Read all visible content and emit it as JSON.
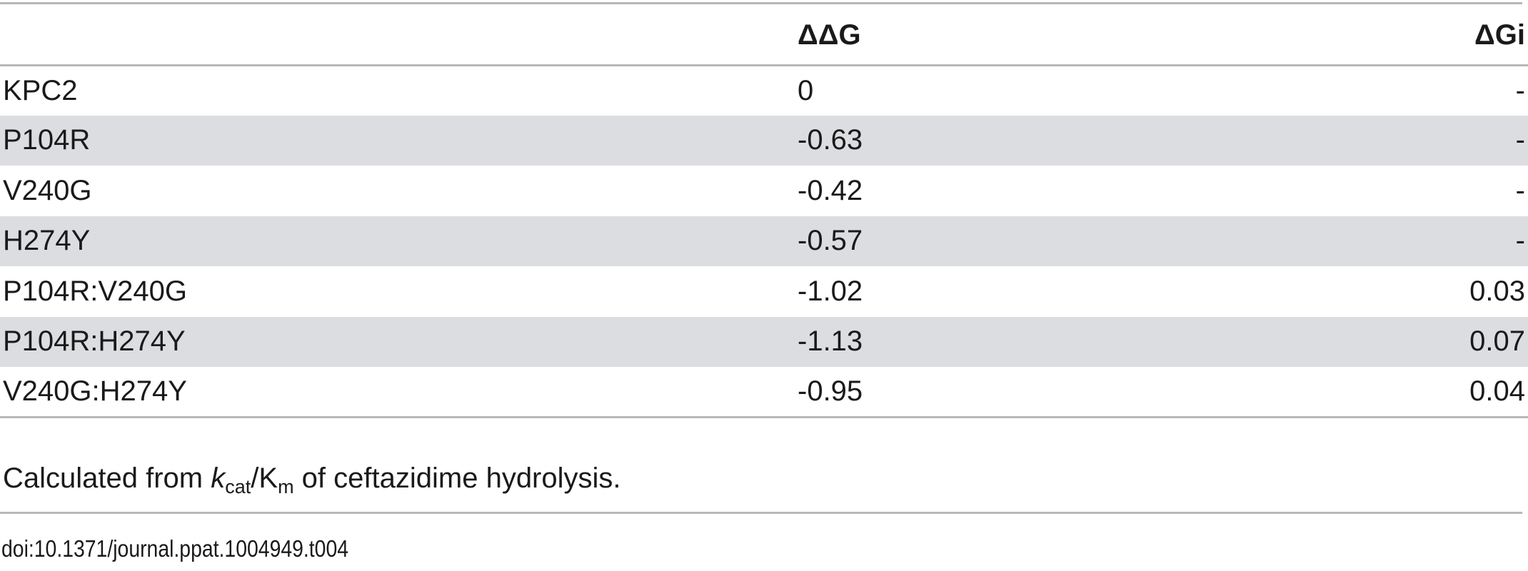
{
  "table": {
    "headers": [
      "",
      "ΔΔG",
      "ΔGi"
    ],
    "rows": [
      {
        "name": "KPC2",
        "ddg": "0",
        "dgi": "-",
        "shaded": false
      },
      {
        "name": "P104R",
        "ddg": "-0.63",
        "dgi": "-",
        "shaded": true
      },
      {
        "name": "V240G",
        "ddg": "-0.42",
        "dgi": "-",
        "shaded": false
      },
      {
        "name": "H274Y",
        "ddg": "-0.57",
        "dgi": "-",
        "shaded": true
      },
      {
        "name": "P104R:V240G",
        "ddg": "-1.02",
        "dgi": "0.03",
        "shaded": false
      },
      {
        "name": "P104R:H274Y",
        "ddg": "-1.13",
        "dgi": "0.07",
        "shaded": true
      },
      {
        "name": "V240G:H274Y",
        "ddg": "-0.95",
        "dgi": "0.04",
        "shaded": false
      }
    ]
  },
  "footnote": {
    "prefix": "Calculated from ",
    "k": "k",
    "k_sub": "cat",
    "slash": "/K",
    "m_sub": "m",
    "suffix": " of ceftazidime hydrolysis."
  },
  "doi": "doi:10.1371/journal.ppat.1004949.t004"
}
